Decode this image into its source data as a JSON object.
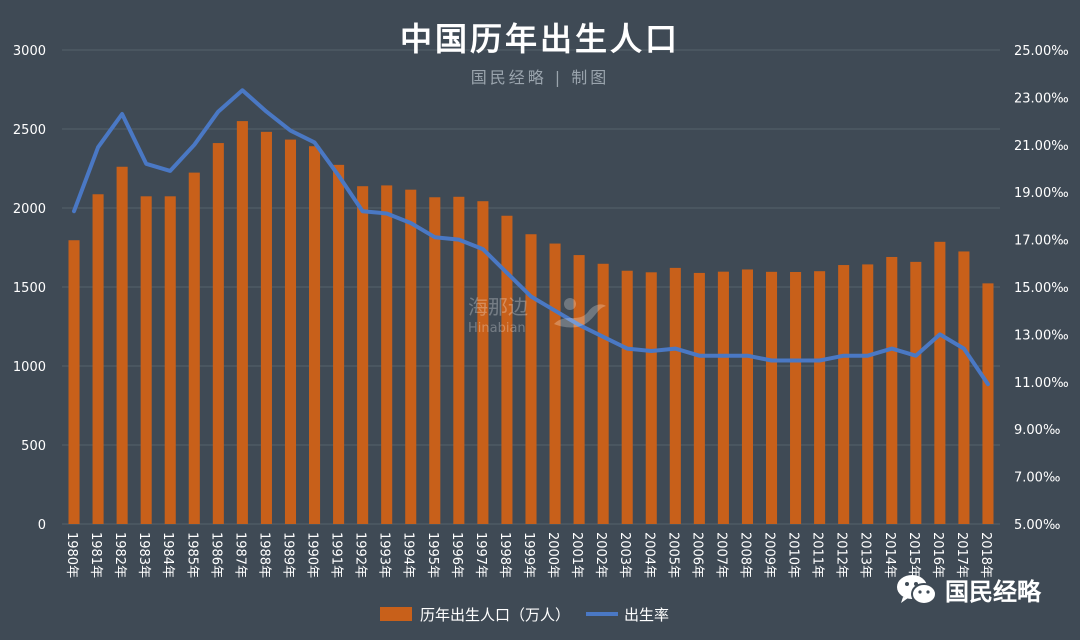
{
  "header": {
    "title": "中国历年出生人口",
    "subtitle": "国民经略 | 制图"
  },
  "watermark": {
    "text": "海那边",
    "sub": "Hinabian"
  },
  "brand": {
    "text": "国民经略",
    "icon": "wechat-icon"
  },
  "legend": {
    "bar_label": "历年出生人口（万人）",
    "line_label": "出生率"
  },
  "colors": {
    "background": "#3f4a55",
    "bar": "#c8601a",
    "line": "#4a78c4",
    "axis_text": "#ffffff",
    "grid": "#56616b"
  },
  "chart_data": {
    "type": "bar",
    "title": "中国历年出生人口",
    "categories": [
      "1980年",
      "1981年",
      "1982年",
      "1983年",
      "1984年",
      "1985年",
      "1986年",
      "1987年",
      "1988年",
      "1989年",
      "1990年",
      "1991年",
      "1992年",
      "1993年",
      "1994年",
      "1995年",
      "1996年",
      "1997年",
      "1998年",
      "1999年",
      "2000年",
      "2001年",
      "2002年",
      "2003年",
      "2004年",
      "2005年",
      "2006年",
      "2007年",
      "2008年",
      "2009年",
      "2010年",
      "2011年",
      "2012年",
      "2013年",
      "2014年",
      "2015年",
      "2016年",
      "2017年",
      "2018年"
    ],
    "y_left": {
      "range": [
        0,
        3000
      ],
      "ticks": [
        "0",
        "500",
        "1000",
        "1500",
        "2000",
        "2500",
        "3000"
      ]
    },
    "y_right": {
      "range": [
        5,
        25
      ],
      "ticks": [
        "5.00‰",
        "7.00‰",
        "9.00‰",
        "11.00‰",
        "13.00‰",
        "15.00‰",
        "17.00‰",
        "19.00‰",
        "21.00‰",
        "23.00‰",
        "25.00‰"
      ]
    },
    "grid": true,
    "legend_position": "bottom",
    "series": [
      {
        "name": "历年出生人口（万人）",
        "type": "bar",
        "axis": "left",
        "values": [
          1796,
          2087,
          2261,
          2074,
          2074,
          2224,
          2411,
          2550,
          2482,
          2433,
          2391,
          2273,
          2138,
          2143,
          2116,
          2068,
          2071,
          2043,
          1951,
          1834,
          1775,
          1702,
          1647,
          1603,
          1593,
          1621,
          1589,
          1597,
          1611,
          1596,
          1595,
          1600,
          1639,
          1643,
          1690,
          1659,
          1786,
          1725,
          1523
        ]
      },
      {
        "name": "出生率",
        "type": "line",
        "axis": "right",
        "values": [
          18.2,
          20.9,
          22.3,
          20.2,
          19.9,
          21.0,
          22.4,
          23.3,
          22.4,
          21.6,
          21.1,
          19.7,
          18.2,
          18.1,
          17.7,
          17.1,
          17.0,
          16.6,
          15.6,
          14.6,
          14.0,
          13.4,
          12.9,
          12.4,
          12.3,
          12.4,
          12.1,
          12.1,
          12.1,
          11.9,
          11.9,
          11.9,
          12.1,
          12.1,
          12.4,
          12.1,
          13.0,
          12.4,
          10.9
        ]
      }
    ]
  }
}
